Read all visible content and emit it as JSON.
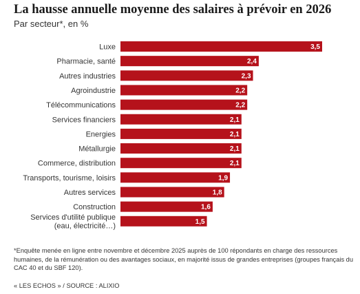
{
  "title": "La hausse annuelle moyenne des salaires à prévoir en 2026",
  "subtitle": "Par secteur*, en %",
  "footnote": "*Enquête menée en ligne entre novembre et décembre 2025 auprès de 100 répondants en charge des ressources humaines, de la rémunération ou des avantages sociaux, en majorité issus de grandes entreprises (groupes français du CAC 40 et du SBF 120).",
  "source": "« LES ECHOS » / SOURCE : ALIXIO",
  "chart_data": {
    "type": "bar",
    "orientation": "horizontal",
    "title": "La hausse annuelle moyenne des salaires à prévoir en 2026",
    "subtitle": "Par secteur*, en %",
    "categories": [
      [
        "Luxe"
      ],
      [
        "Pharmacie, santé"
      ],
      [
        "Autres industries"
      ],
      [
        "Agroindustrie"
      ],
      [
        "Télécommunications"
      ],
      [
        "Services financiers"
      ],
      [
        "Energies"
      ],
      [
        "Métallurgie"
      ],
      [
        "Commerce, distribution"
      ],
      [
        "Transports, tourisme, loisirs"
      ],
      [
        "Autres services"
      ],
      [
        "Construction"
      ],
      [
        "Services d'utilité publique",
        "(eau, électricité…)"
      ]
    ],
    "values": [
      3.5,
      2.4,
      2.3,
      2.2,
      2.2,
      2.1,
      2.1,
      2.1,
      2.1,
      1.9,
      1.8,
      1.6,
      1.5
    ],
    "value_labels": [
      "3,5",
      "2,4",
      "2,3",
      "2,2",
      "2,2",
      "2,1",
      "2,1",
      "2,1",
      "2,1",
      "1,9",
      "1,8",
      "1,6",
      "1,5"
    ],
    "xlim": [
      0,
      3.5
    ],
    "grid": false,
    "bar_color": "#b5121b",
    "label_color": "#ffffff"
  }
}
